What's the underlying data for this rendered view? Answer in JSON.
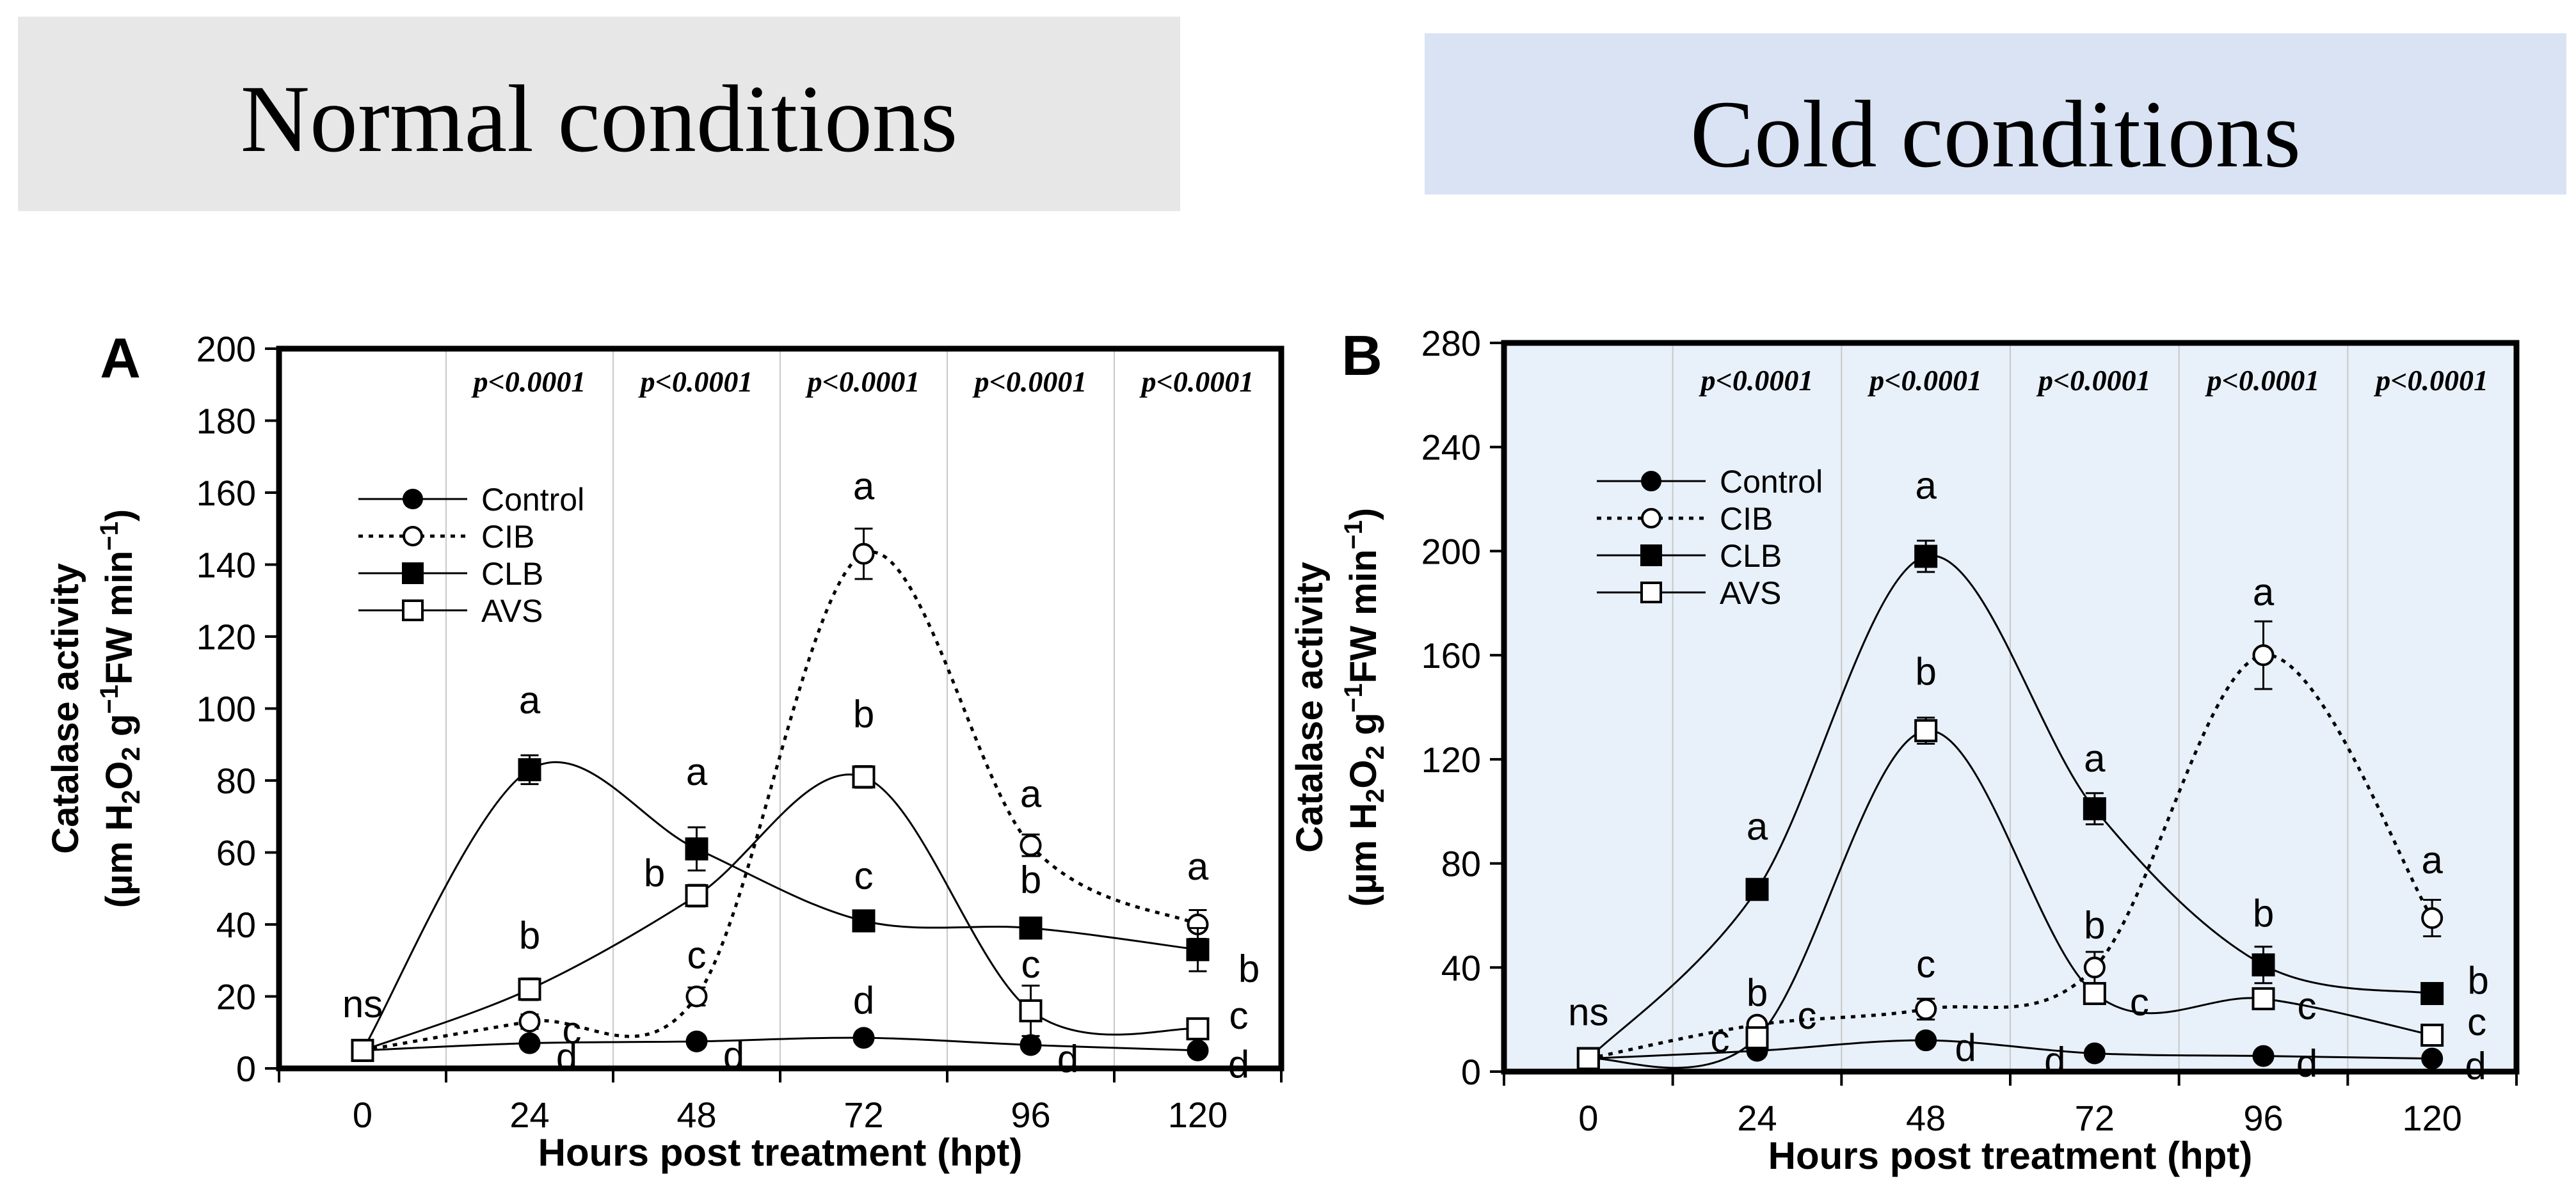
{
  "colors": {
    "normal_banner_bg": "#e7e7e7",
    "cold_banner_bg": "#d9e3f3",
    "cold_plot_bg": "#e8f0f9",
    "ink": "#000000",
    "grid": "#c8c8c8"
  },
  "banners": {
    "normal": "Normal conditions",
    "cold": "Cold conditions"
  },
  "chart_data": [
    {
      "type": "line",
      "panel_label": "A",
      "title": "Normal conditions",
      "xlabel": "Hours post treatment (hpt)",
      "ylabel_line1": "Catalase activity",
      "ylabel_line2_prefix": "(µm H",
      "ylabel_sub2": "2",
      "ylabel_o": "O",
      "ylabel_g": " g",
      "ylabel_sup1": "−1",
      "ylabel_fw": "FW min",
      "ylabel_close": ")",
      "x": [
        0,
        24,
        48,
        72,
        96,
        120
      ],
      "xticks": [
        "0",
        "24",
        "48",
        "72",
        "96",
        "120"
      ],
      "ylim": [
        0,
        200
      ],
      "yticks": [
        "0",
        "20",
        "40",
        "60",
        "80",
        "100",
        "120",
        "140",
        "160",
        "180",
        "200"
      ],
      "grid": "vertical",
      "pvalues": [
        "p<0.0001",
        "p<0.0001",
        "p<0.0001",
        "p<0.0001",
        "p<0.0001"
      ],
      "legend": [
        "Control",
        "CIB",
        "CLB",
        "AVS"
      ],
      "legend_position": "top-left",
      "ns_label": "ns",
      "series": [
        {
          "name": "Control",
          "values": [
            5,
            7,
            7.5,
            8.5,
            6.5,
            5
          ],
          "errors": [
            0,
            1.5,
            1.5,
            1.5,
            1.5,
            1
          ],
          "letters": [
            "",
            "d",
            "d",
            "d",
            "d",
            "d"
          ]
        },
        {
          "name": "CIB",
          "values": [
            5,
            13,
            20,
            143,
            62,
            40
          ],
          "errors": [
            0,
            2,
            2.5,
            7,
            3,
            4
          ],
          "letters": [
            "",
            "c",
            "c",
            "a",
            "a",
            "a"
          ]
        },
        {
          "name": "CLB",
          "values": [
            5,
            83,
            61,
            41,
            39,
            33
          ],
          "errors": [
            0,
            4,
            6,
            2,
            2,
            6
          ],
          "letters": [
            "",
            "a",
            "a",
            "c",
            "b",
            "b"
          ]
        },
        {
          "name": "AVS",
          "values": [
            5,
            22,
            48,
            81,
            16,
            11
          ],
          "errors": [
            0,
            3,
            3,
            3,
            7,
            2
          ],
          "letters": [
            "",
            "b",
            "b",
            "b",
            "c",
            "c"
          ]
        }
      ]
    },
    {
      "type": "line",
      "panel_label": "B",
      "title": "Cold conditions",
      "xlabel": "Hours post treatment (hpt)",
      "ylabel_line1": "Catalase activity",
      "ylabel_line2_prefix": "(µm H",
      "ylabel_sub2": "2",
      "ylabel_o": "O",
      "ylabel_g": " g",
      "ylabel_sup1": "−1",
      "ylabel_fw": "FW min",
      "ylabel_close": ")",
      "x": [
        0,
        24,
        48,
        72,
        96,
        120
      ],
      "xticks": [
        "0",
        "24",
        "48",
        "72",
        "96",
        "120"
      ],
      "ylim": [
        0,
        280
      ],
      "yticks": [
        "0",
        "40",
        "80",
        "120",
        "160",
        "200",
        "240",
        "280"
      ],
      "grid": "vertical",
      "pvalues": [
        "p<0.0001",
        "p<0.0001",
        "p<0.0001",
        "p<0.0001",
        "p<0.0001"
      ],
      "legend": [
        "Control",
        "CIB",
        "CLB",
        "AVS"
      ],
      "legend_position": "top-left",
      "ns_label": "ns",
      "series": [
        {
          "name": "Control",
          "values": [
            5,
            8,
            12,
            7,
            6,
            5
          ],
          "errors": [
            0,
            1.5,
            2,
            1.5,
            1.5,
            1
          ],
          "letters": [
            "",
            "c",
            "d",
            "d",
            "d",
            "d"
          ]
        },
        {
          "name": "CIB",
          "values": [
            5,
            18,
            24,
            40,
            160,
            59
          ],
          "errors": [
            0,
            2,
            4,
            6,
            13,
            7
          ],
          "letters": [
            "",
            "c",
            "c",
            "b",
            "a",
            "a"
          ]
        },
        {
          "name": "CLB",
          "values": [
            5,
            70,
            198,
            101,
            41,
            30
          ],
          "errors": [
            0,
            4,
            6,
            6,
            7,
            2
          ],
          "letters": [
            "",
            "a",
            "a",
            "a",
            "b",
            "b"
          ]
        },
        {
          "name": "AVS",
          "values": [
            5,
            13,
            131,
            30,
            28,
            14
          ],
          "errors": [
            0,
            2,
            5,
            3,
            3,
            2
          ],
          "letters": [
            "",
            "b",
            "b",
            "c",
            "c",
            "c"
          ]
        }
      ]
    }
  ]
}
